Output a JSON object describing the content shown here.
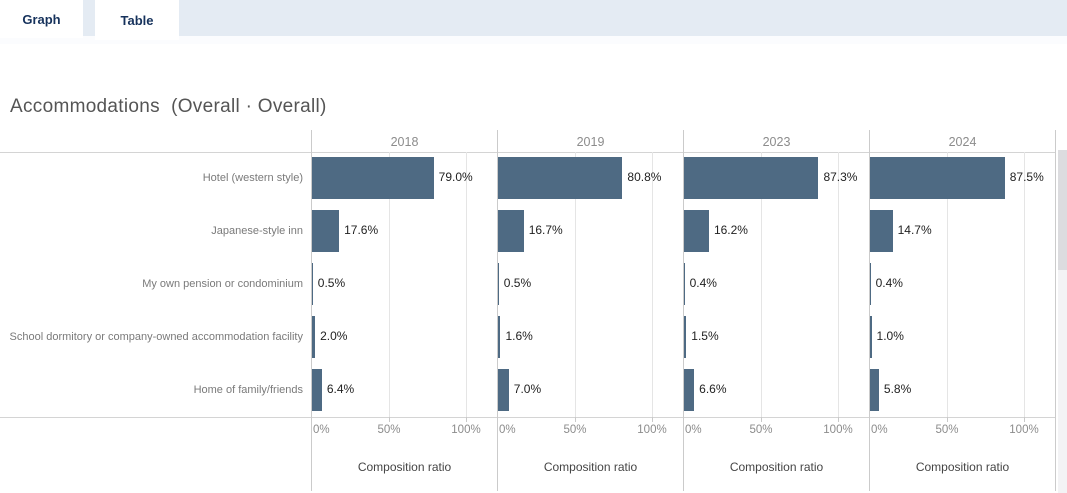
{
  "tabs": {
    "items": [
      {
        "label": "Graph",
        "active": true
      },
      {
        "label": "Table",
        "active": false
      }
    ]
  },
  "title": "Accommodations  (Overall · Overall)",
  "colors": {
    "bar": "#4e6a83",
    "tab_text": "#16325c",
    "tabbar_background": "#e4ebf3"
  },
  "chart_data": {
    "type": "bar",
    "orientation": "horizontal",
    "title": "Accommodations  (Overall · Overall)",
    "categories": [
      "Hotel (western style)",
      "Japanese-style inn",
      "My own pension or condominium",
      "School dormitory or company-owned accommodation facility",
      "Home of family/friends"
    ],
    "series": [
      {
        "name": "2018",
        "values": [
          79.0,
          17.6,
          0.5,
          2.0,
          6.4
        ],
        "labels": [
          "79.0%",
          "17.6%",
          "0.5%",
          "2.0%",
          "6.4%"
        ]
      },
      {
        "name": "2019",
        "values": [
          80.8,
          16.7,
          0.5,
          1.6,
          7.0
        ],
        "labels": [
          "80.8%",
          "16.7%",
          "0.5%",
          "1.6%",
          "7.0%"
        ]
      },
      {
        "name": "2023",
        "values": [
          87.3,
          16.2,
          0.4,
          1.5,
          6.6
        ],
        "labels": [
          "87.3%",
          "16.2%",
          "0.4%",
          "1.5%",
          "6.6%"
        ]
      },
      {
        "name": "2024",
        "values": [
          87.5,
          14.7,
          0.4,
          1.0,
          5.8
        ],
        "labels": [
          "87.5%",
          "14.7%",
          "0.4%",
          "1.0%",
          "5.8%"
        ]
      }
    ],
    "xlabel": "Composition ratio",
    "x_ticks": [
      "0%",
      "50%",
      "100%"
    ],
    "xlim": [
      0,
      100
    ],
    "grid": true,
    "legend": "none",
    "panel_headers_position": "top"
  }
}
